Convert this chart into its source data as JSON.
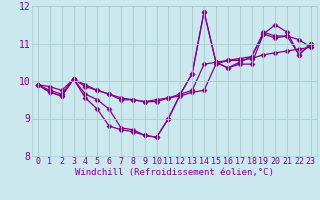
{
  "title": "",
  "xlabel": "Windchill (Refroidissement éolien,°C)",
  "ylabel": "",
  "background_color": "#cce8ef",
  "grid_color": "#aacccc",
  "line_color": "#880088",
  "xlim": [
    -0.5,
    23.5
  ],
  "ylim": [
    8,
    12
  ],
  "xticks": [
    0,
    1,
    2,
    3,
    4,
    5,
    6,
    7,
    8,
    9,
    10,
    11,
    12,
    13,
    14,
    15,
    16,
    17,
    18,
    19,
    20,
    21,
    22,
    23
  ],
  "yticks": [
    8,
    9,
    10,
    11,
    12
  ],
  "series": [
    [
      9.9,
      9.85,
      9.75,
      10.05,
      9.9,
      9.75,
      9.65,
      9.5,
      9.5,
      9.45,
      9.5,
      9.55,
      9.6,
      9.7,
      9.75,
      10.45,
      10.55,
      10.55,
      10.6,
      10.7,
      10.75,
      10.8,
      10.85,
      10.9
    ],
    [
      9.9,
      9.7,
      9.6,
      10.05,
      9.55,
      9.25,
      8.8,
      8.7,
      8.65,
      8.55,
      8.5,
      9.0,
      9.65,
      10.2,
      11.85,
      10.5,
      10.35,
      10.45,
      10.45,
      11.25,
      11.5,
      11.3,
      10.7,
      11.0
    ],
    [
      9.9,
      9.75,
      9.65,
      10.05,
      9.85,
      9.75,
      9.65,
      9.55,
      9.5,
      9.45,
      9.45,
      9.55,
      9.65,
      9.75,
      10.45,
      10.5,
      10.55,
      10.6,
      10.65,
      11.25,
      11.15,
      11.2,
      11.1,
      10.9
    ],
    [
      9.9,
      9.7,
      9.6,
      10.05,
      9.65,
      9.5,
      9.25,
      8.75,
      8.7,
      8.55,
      8.5,
      9.0,
      9.65,
      10.2,
      11.85,
      10.5,
      10.35,
      10.5,
      10.65,
      11.3,
      11.2,
      11.2,
      10.7,
      11.0
    ]
  ],
  "xlabel_fontsize": 6.5,
  "tick_fontsize": 6.0,
  "ytick_fontsize": 7.0,
  "linewidth": 0.9,
  "markersize": 2.5
}
